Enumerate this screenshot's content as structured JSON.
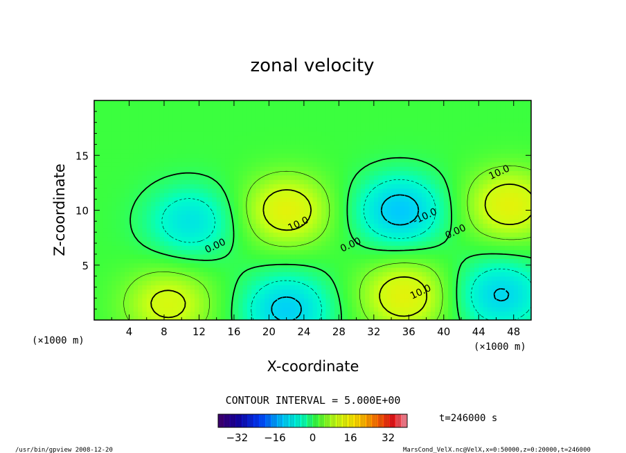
{
  "chart_data": {
    "type": "heatmap",
    "title": "zonal velocity",
    "xlabel": "X-coordinate",
    "ylabel": "Z-coordinate",
    "x_unit_left": "(×1000 m)",
    "x_unit_right": "(×1000 m)",
    "xlim": [
      0,
      50
    ],
    "ylim": [
      0,
      20
    ],
    "x_ticks": [
      4,
      8,
      12,
      16,
      20,
      24,
      28,
      32,
      36,
      40,
      44,
      48
    ],
    "y_ticks": [
      5,
      10,
      15
    ],
    "contour_interval_text": "CONTOUR INTERVAL = 5.000E+00",
    "contour_labels": [
      {
        "text": "0.00",
        "x": 14,
        "z": 6.5
      },
      {
        "text": "10.0",
        "x": 23.5,
        "z": 8.5
      },
      {
        "text": "0.00",
        "x": 29.5,
        "z": 6.6
      },
      {
        "text": "-10.0",
        "x": 38,
        "z": 9.2
      },
      {
        "text": "0.00",
        "x": 41.5,
        "z": 7.8
      },
      {
        "text": "10.0",
        "x": 46.5,
        "z": 13.2
      },
      {
        "text": "10.0",
        "x": 37.5,
        "z": 2.3
      }
    ],
    "field_extrema": [
      {
        "kind": "max",
        "x": 22,
        "z": 10,
        "value": 12
      },
      {
        "kind": "min",
        "x": 11,
        "z": 9,
        "value": -10
      },
      {
        "kind": "min",
        "x": 35,
        "z": 10,
        "value": -14
      },
      {
        "kind": "max",
        "x": 47.5,
        "z": 10.5,
        "value": 12
      },
      {
        "kind": "max",
        "x": 8.5,
        "z": 1.5,
        "value": 10
      },
      {
        "kind": "min",
        "x": 22,
        "z": 1,
        "value": -13
      },
      {
        "kind": "max",
        "x": 35.5,
        "z": 2.2,
        "value": 12
      },
      {
        "kind": "min",
        "x": 46.5,
        "z": 2.3,
        "value": -12
      }
    ],
    "colorbar": {
      "min": -40,
      "max": 40,
      "ticks": [
        -32,
        -16,
        0,
        16,
        32
      ],
      "tick_labels": [
        "−32",
        "−16",
        "0",
        "16",
        "32"
      ]
    },
    "time_label": "t=246000 s"
  },
  "footer": {
    "left": "/usr/bin/gpview   2008-12-20",
    "right": "MarsCond_VelX.nc@VelX,x=0:50000,z=0:20000,t=246000"
  }
}
